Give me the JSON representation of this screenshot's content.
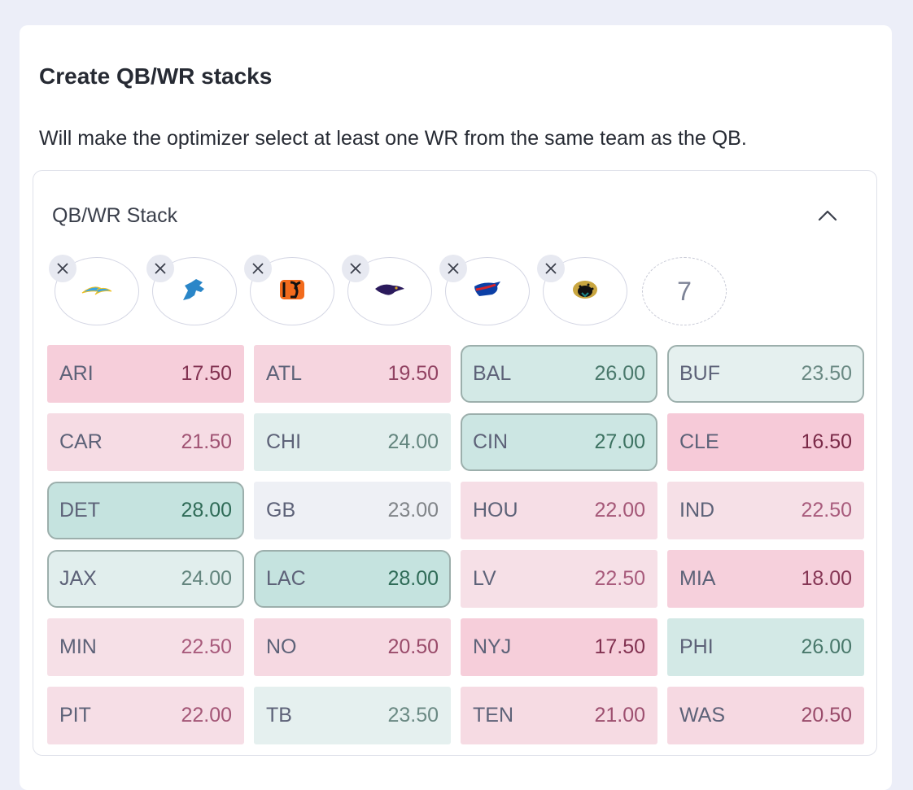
{
  "header": {
    "title": "Create QB/WR stacks",
    "description": "Will make the optimizer select at least one WR from the same team as the QB."
  },
  "panel": {
    "title": "QB/WR Stack",
    "collapse_icon": "chevron-up-icon"
  },
  "selected_teams": [
    {
      "team": "LAC",
      "logo": "chargers-logo-icon",
      "remove_icon": "close-icon"
    },
    {
      "team": "DET",
      "logo": "lions-logo-icon",
      "remove_icon": "close-icon"
    },
    {
      "team": "CIN",
      "logo": "bengals-logo-icon",
      "remove_icon": "close-icon"
    },
    {
      "team": "BAL",
      "logo": "ravens-logo-icon",
      "remove_icon": "close-icon"
    },
    {
      "team": "BUF",
      "logo": "bills-logo-icon",
      "remove_icon": "close-icon"
    },
    {
      "team": "JAX",
      "logo": "jaguars-logo-icon",
      "remove_icon": "close-icon"
    }
  ],
  "more_count": "7",
  "teams": [
    {
      "abbr": "ARI",
      "total": "17.50",
      "selected": false
    },
    {
      "abbr": "ATL",
      "total": "19.50",
      "selected": false
    },
    {
      "abbr": "BAL",
      "total": "26.00",
      "selected": true
    },
    {
      "abbr": "BUF",
      "total": "23.50",
      "selected": true
    },
    {
      "abbr": "CAR",
      "total": "21.50",
      "selected": false
    },
    {
      "abbr": "CHI",
      "total": "24.00",
      "selected": false
    },
    {
      "abbr": "CIN",
      "total": "27.00",
      "selected": true
    },
    {
      "abbr": "CLE",
      "total": "16.50",
      "selected": false
    },
    {
      "abbr": "DET",
      "total": "28.00",
      "selected": true
    },
    {
      "abbr": "GB",
      "total": "23.00",
      "selected": false
    },
    {
      "abbr": "HOU",
      "total": "22.00",
      "selected": false
    },
    {
      "abbr": "IND",
      "total": "22.50",
      "selected": false
    },
    {
      "abbr": "JAX",
      "total": "24.00",
      "selected": true
    },
    {
      "abbr": "LAC",
      "total": "28.00",
      "selected": true
    },
    {
      "abbr": "LV",
      "total": "22.50",
      "selected": false
    },
    {
      "abbr": "MIA",
      "total": "18.00",
      "selected": false
    },
    {
      "abbr": "MIN",
      "total": "22.50",
      "selected": false
    },
    {
      "abbr": "NO",
      "total": "20.50",
      "selected": false
    },
    {
      "abbr": "NYJ",
      "total": "17.50",
      "selected": false
    },
    {
      "abbr": "PHI",
      "total": "26.00",
      "selected": false
    },
    {
      "abbr": "PIT",
      "total": "22.00",
      "selected": false
    },
    {
      "abbr": "TB",
      "total": "23.50",
      "selected": false
    },
    {
      "abbr": "TEN",
      "total": "21.00",
      "selected": false
    },
    {
      "abbr": "WAS",
      "total": "20.50",
      "selected": false
    }
  ],
  "colors": {
    "page_bg": "#eceef8",
    "card_bg": "#ffffff",
    "high_total": "#2f6b57",
    "low_total": "#7a2a48",
    "neutral_total": "#808488"
  }
}
